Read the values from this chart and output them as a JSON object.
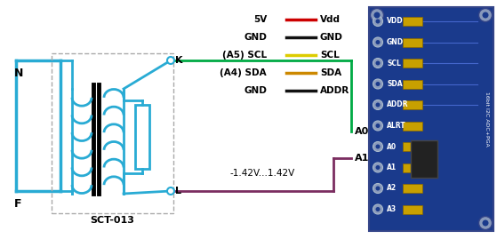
{
  "bg_color": "#ffffff",
  "cyan": "#29ABD4",
  "green": "#00AA44",
  "purple": "#7B2D60",
  "teal": "#29ABD4",
  "coil_color": "#29ABD4",
  "legend": [
    {
      "label_left": "5V",
      "color": "#CC0000",
      "label_right": "Vdd"
    },
    {
      "label_left": "GND",
      "color": "#111111",
      "label_right": "GND"
    },
    {
      "label_left": "(A5) SCL",
      "color": "#DDCC00",
      "label_right": "SCL"
    },
    {
      "label_left": "(A4) SDA",
      "color": "#CC8800",
      "label_right": "SDA"
    },
    {
      "label_left": "GND",
      "color": "#111111",
      "label_right": "ADDR"
    }
  ],
  "voltage_label": "-1.42V...1.42V",
  "label_K": "K",
  "label_L": "L",
  "label_N": "N",
  "label_F": "F",
  "label_A0": "A0",
  "label_A1": "A1",
  "label_sct": "SCT-013",
  "pcb_labels": [
    "VDD",
    "GND",
    "SCL",
    "SDA",
    "ADDR",
    "ALRT",
    "A0",
    "A1",
    "A2",
    "A3"
  ],
  "pcb_bg": "#1a3a8c",
  "pcb_circle": "#6677aa",
  "pcb_pad": "#c8a000"
}
